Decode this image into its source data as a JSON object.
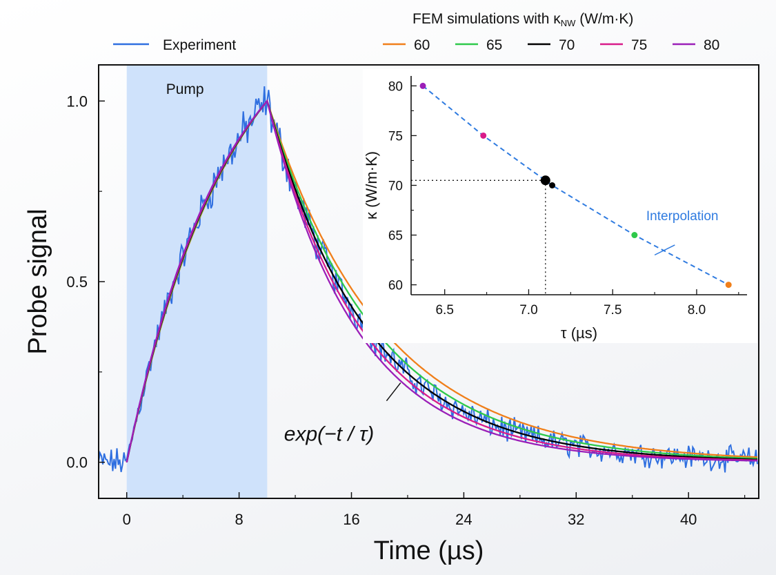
{
  "chart_data": [
    {
      "type": "line",
      "title": "",
      "xlabel": "Time (µs)",
      "ylabel": "Probe signal",
      "xlim": [
        -2,
        45
      ],
      "ylim": [
        -0.1,
        1.1
      ],
      "xticks": [
        0,
        8,
        16,
        24,
        32,
        40
      ],
      "yticks": [
        0.0,
        0.5,
        1.0
      ],
      "grid": false,
      "shaded_region": {
        "label": "Pump",
        "x": [
          0,
          10
        ],
        "color": "#cfe2fb"
      },
      "annotation": "exp(−t / τ)",
      "legend": {
        "placement": "top",
        "experiment_label": "Experiment",
        "fem_title_main": "FEM simulations with κ",
        "fem_title_sub": "NW",
        "fem_title_unit": " (W/m·K)"
      },
      "series": [
        {
          "name": "Experiment",
          "color": "#2f6fe0",
          "kind": "noisy",
          "tau": 7.1,
          "rise_tau": 7.2,
          "x": [
            -2,
            -1.5,
            -1,
            -0.5,
            0,
            0.5,
            1,
            1.5,
            2,
            3,
            4,
            5,
            6,
            7,
            8,
            9,
            10,
            11,
            12,
            13,
            14,
            15,
            16,
            18,
            20,
            22,
            24,
            26,
            28,
            30,
            32,
            34,
            36,
            38,
            40,
            42,
            45
          ],
          "y": [
            -0.04,
            0.01,
            -0.02,
            0.02,
            -0.04,
            0.16,
            0.21,
            0.24,
            0.29,
            0.41,
            0.55,
            0.63,
            0.71,
            0.8,
            0.86,
            0.93,
            1.0,
            0.87,
            0.73,
            0.63,
            0.54,
            0.44,
            0.39,
            0.29,
            0.22,
            0.15,
            0.11,
            0.08,
            0.07,
            0.04,
            0.04,
            0.02,
            0.02,
            0.01,
            0.01,
            0.0,
            0.0
          ]
        },
        {
          "name": "60",
          "color": "#f07f1a",
          "tau": 8.19,
          "rise_tau": 7.6
        },
        {
          "name": "65",
          "color": "#2ec94a",
          "tau": 7.63,
          "rise_tau": 7.45
        },
        {
          "name": "70",
          "color": "#000000",
          "tau": 7.14,
          "rise_tau": 7.3
        },
        {
          "name": "75",
          "color": "#d81b8a",
          "tau": 6.73,
          "rise_tau": 7.15
        },
        {
          "name": "80",
          "color": "#9b1fb8",
          "tau": 6.37,
          "rise_tau": 7.0
        }
      ]
    },
    {
      "type": "scatter",
      "title": "",
      "xlabel": "τ (µs)",
      "ylabel": "κ (W/m·K)",
      "xlim": [
        6.3,
        8.3
      ],
      "ylim": [
        59,
        81
      ],
      "xticks": [
        6.5,
        7.0,
        7.5,
        8.0
      ],
      "yticks": [
        60,
        65,
        70,
        75,
        80
      ],
      "grid": false,
      "annotation": "Interpolation",
      "interpolation_color": "#2f7be0",
      "points": [
        {
          "x": 6.37,
          "y": 80,
          "color": "#9b1fb8"
        },
        {
          "x": 6.73,
          "y": 75,
          "color": "#d81b8a"
        },
        {
          "x": 7.14,
          "y": 70,
          "color": "#000000"
        },
        {
          "x": 7.63,
          "y": 65,
          "color": "#2ec94a"
        },
        {
          "x": 8.19,
          "y": 60,
          "color": "#f07f1a"
        }
      ],
      "result": {
        "x": 7.1,
        "y": 70.5,
        "color": "#000000"
      }
    }
  ]
}
